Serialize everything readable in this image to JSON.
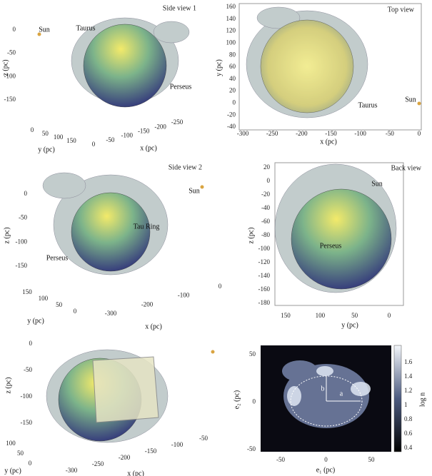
{
  "panels": [
    {
      "title": "Side view 1",
      "labels": [
        "Sun",
        "Taurus",
        "Perseus"
      ],
      "axes": [
        {
          "label": "z (pc)",
          "ticks": [
            0,
            -50,
            -100,
            -150
          ]
        },
        {
          "label": "y (pc)",
          "ticks": [
            0,
            50,
            100,
            150
          ]
        },
        {
          "label": "x (pc)",
          "ticks": [
            0,
            -50,
            -100,
            -150,
            -200,
            -250
          ]
        }
      ]
    },
    {
      "title": "Top view",
      "labels": [
        "Taurus",
        "Sun"
      ],
      "axes": [
        {
          "label": "y (pc)",
          "ticks": [
            160,
            140,
            120,
            100,
            80,
            60,
            40,
            20,
            0,
            -20,
            -40
          ]
        },
        {
          "label": "x (pc)",
          "ticks": [
            -300,
            -250,
            -200,
            -150,
            -100,
            -50,
            0
          ]
        }
      ]
    },
    {
      "title": "Side view 2",
      "labels": [
        "Sun",
        "Tau Ring",
        "Perseus"
      ],
      "axes": [
        {
          "label": "z (pc)",
          "ticks": [
            0,
            -50,
            -100,
            -150
          ]
        },
        {
          "label": "y (pc)",
          "ticks": [
            150,
            100,
            50,
            0
          ]
        },
        {
          "label": "x (pc)",
          "ticks": [
            -300,
            -200,
            -100,
            0
          ]
        }
      ]
    },
    {
      "title": "Back view",
      "labels": [
        "Sun",
        "Perseus"
      ],
      "axes": [
        {
          "label": "z (pc)",
          "ticks": [
            20,
            0,
            -20,
            -40,
            -60,
            -80,
            -100,
            -120,
            -140,
            -160,
            -180
          ]
        },
        {
          "label": "y (pc)",
          "ticks": [
            150,
            100,
            50,
            0
          ]
        }
      ]
    },
    {
      "labels": [],
      "axes": [
        {
          "label": "z (pc)",
          "ticks": [
            0,
            -50,
            -100,
            -150
          ]
        },
        {
          "label": "y (pc)",
          "ticks": [
            100,
            50,
            0
          ]
        },
        {
          "label": "x (pc)",
          "ticks": [
            -300,
            -250,
            -200,
            -150,
            -100,
            -50
          ]
        }
      ]
    },
    {
      "labels": [
        "a",
        "b"
      ],
      "axes": [
        {
          "label": "e₂ (pc)",
          "ticks": [
            50,
            0,
            -50
          ]
        },
        {
          "label": "e₁ (pc)",
          "ticks": [
            -50,
            0,
            50
          ]
        },
        {
          "label": "log n",
          "ticks": [
            1.6,
            1.4,
            1.2,
            1,
            0.8,
            0.6,
            0.4
          ]
        }
      ]
    }
  ]
}
